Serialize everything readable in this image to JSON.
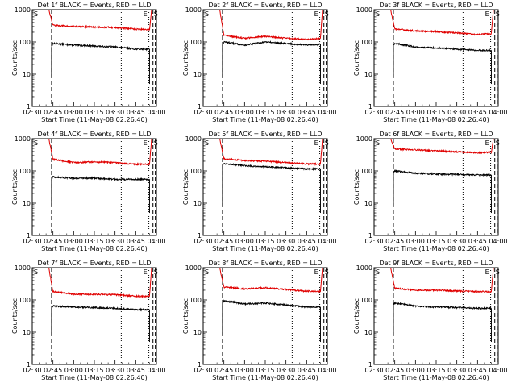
{
  "common": {
    "xlabel": "Start Time (11-May-08 02:26:40)",
    "ylabel": "Counts/sec",
    "x_ticks": [
      "02:30",
      "02:45",
      "03:00",
      "03:15",
      "03:30",
      "03:45",
      "04:00"
    ],
    "y_ticks": [
      "1",
      "10",
      "100",
      "1000"
    ],
    "markers": {
      "start": "S",
      "end": "E"
    },
    "colors": {
      "events": "#000000",
      "lld": "#e00000"
    }
  },
  "chart_data": [
    {
      "type": "line",
      "title": "Det 1f BLACK = Events, RED = LLD",
      "xlabel": "Start Time (11-May-08 02:26:40)",
      "ylabel": "Counts/sec",
      "ylim": [
        1,
        1000
      ],
      "yscale": "log",
      "x_minutes": [
        0,
        90
      ],
      "x_ticks": [
        "02:30",
        "02:45",
        "03:00",
        "03:15",
        "03:30",
        "03:45",
        "04:00"
      ],
      "vlines": {
        "dashed": [
          14,
          87.5,
          89.2
        ],
        "dotted": [
          64.5,
          84.5
        ]
      },
      "series": [
        {
          "key": "black",
          "x": [
            14,
            15,
            30,
            45,
            60,
            75,
            85
          ],
          "y": [
            70,
            90,
            80,
            75,
            70,
            60,
            60
          ]
        },
        {
          "key": "red",
          "x": [
            12,
            15,
            30,
            45,
            60,
            75,
            85,
            86.5
          ],
          "y": [
            1000,
            330,
            300,
            290,
            280,
            250,
            240,
            1000
          ]
        }
      ]
    },
    {
      "type": "line",
      "title": "Det 2f BLACK = Events, RED = LLD",
      "xlabel": "Start Time (11-May-08 02:26:40)",
      "ylabel": "Counts/sec",
      "ylim": [
        1,
        1000
      ],
      "yscale": "log",
      "x_minutes": [
        0,
        90
      ],
      "x_ticks": [
        "02:30",
        "02:45",
        "03:00",
        "03:15",
        "03:30",
        "03:45",
        "04:00"
      ],
      "vlines": {
        "dashed": [
          14,
          87.5,
          89.2
        ],
        "dotted": [
          64.5,
          84.5
        ]
      },
      "series": [
        {
          "key": "black",
          "x": [
            14,
            15,
            30,
            45,
            60,
            75,
            85
          ],
          "y": [
            80,
            100,
            80,
            100,
            90,
            80,
            85
          ]
        },
        {
          "key": "red",
          "x": [
            12,
            15,
            30,
            45,
            60,
            75,
            85,
            86.5
          ],
          "y": [
            1000,
            160,
            130,
            150,
            130,
            120,
            130,
            1000
          ]
        }
      ]
    },
    {
      "type": "line",
      "title": "Det 3f BLACK = Events, RED = LLD",
      "xlabel": "Start Time (11-May-08 02:26:40)",
      "ylabel": "Counts/sec",
      "ylim": [
        1,
        1000
      ],
      "yscale": "log",
      "x_minutes": [
        0,
        90
      ],
      "x_ticks": [
        "02:30",
        "02:45",
        "03:00",
        "03:15",
        "03:30",
        "03:45",
        "04:00"
      ],
      "vlines": {
        "dashed": [
          14,
          87.5,
          89.2
        ],
        "dotted": [
          64.5,
          84.5
        ]
      },
      "series": [
        {
          "key": "black",
          "x": [
            14,
            15,
            30,
            45,
            60,
            75,
            85
          ],
          "y": [
            80,
            90,
            70,
            65,
            60,
            55,
            55
          ]
        },
        {
          "key": "red",
          "x": [
            12,
            15,
            30,
            45,
            60,
            75,
            85,
            86.5
          ],
          "y": [
            1000,
            250,
            220,
            210,
            190,
            170,
            180,
            1000
          ]
        }
      ]
    },
    {
      "type": "line",
      "title": "Det 4f BLACK = Events, RED = LLD",
      "xlabel": "Start Time (11-May-08 02:26:40)",
      "ylabel": "Counts/sec",
      "ylim": [
        1,
        1000
      ],
      "yscale": "log",
      "x_minutes": [
        0,
        90
      ],
      "x_ticks": [
        "02:30",
        "02:45",
        "03:00",
        "03:15",
        "03:30",
        "03:45",
        "04:00"
      ],
      "vlines": {
        "dashed": [
          14,
          87.5,
          89.2
        ],
        "dotted": [
          64.5,
          84.5
        ]
      },
      "series": [
        {
          "key": "black",
          "x": [
            14,
            15,
            30,
            45,
            60,
            75,
            85
          ],
          "y": [
            55,
            65,
            60,
            60,
            55,
            55,
            55
          ]
        },
        {
          "key": "red",
          "x": [
            12,
            15,
            30,
            45,
            60,
            75,
            85,
            86.5
          ],
          "y": [
            1000,
            230,
            180,
            190,
            180,
            160,
            160,
            1000
          ]
        }
      ]
    },
    {
      "type": "line",
      "title": "Det 5f BLACK = Events, RED = LLD",
      "xlabel": "Start Time (11-May-08 02:26:40)",
      "ylabel": "Counts/sec",
      "ylim": [
        1,
        1000
      ],
      "yscale": "log",
      "x_minutes": [
        0,
        90
      ],
      "x_ticks": [
        "02:30",
        "02:45",
        "03:00",
        "03:15",
        "03:30",
        "03:45",
        "04:00"
      ],
      "vlines": {
        "dashed": [
          14,
          87.5,
          89.2
        ],
        "dotted": [
          64.5,
          84.5
        ]
      },
      "series": [
        {
          "key": "black",
          "x": [
            14,
            15,
            30,
            45,
            60,
            75,
            85
          ],
          "y": [
            150,
            170,
            145,
            135,
            125,
            115,
            115
          ]
        },
        {
          "key": "red",
          "x": [
            12,
            15,
            30,
            45,
            60,
            75,
            85,
            86.5
          ],
          "y": [
            1000,
            240,
            210,
            200,
            180,
            165,
            165,
            1000
          ]
        }
      ]
    },
    {
      "type": "line",
      "title": "Det 6f BLACK = Events, RED = LLD",
      "xlabel": "Start Time (11-May-08 02:26:40)",
      "ylabel": "Counts/sec",
      "ylim": [
        1,
        1000
      ],
      "yscale": "log",
      "x_minutes": [
        0,
        90
      ],
      "x_ticks": [
        "02:30",
        "02:45",
        "03:00",
        "03:15",
        "03:30",
        "03:45",
        "04:00"
      ],
      "vlines": {
        "dashed": [
          14,
          87.5,
          89.2
        ],
        "dotted": [
          64.5,
          84.5
        ]
      },
      "series": [
        {
          "key": "black",
          "x": [
            14,
            15,
            30,
            45,
            60,
            75,
            85
          ],
          "y": [
            90,
            100,
            85,
            80,
            78,
            75,
            75
          ]
        },
        {
          "key": "red",
          "x": [
            12,
            15,
            30,
            45,
            60,
            75,
            85,
            86.5
          ],
          "y": [
            1000,
            480,
            450,
            420,
            390,
            370,
            380,
            1000
          ]
        }
      ]
    },
    {
      "type": "line",
      "title": "Det 7f BLACK = Events, RED = LLD",
      "xlabel": "Start Time (11-May-08 02:26:40)",
      "ylabel": "Counts/sec",
      "ylim": [
        1,
        1000
      ],
      "yscale": "log",
      "x_minutes": [
        0,
        90
      ],
      "x_ticks": [
        "02:30",
        "02:45",
        "03:00",
        "03:15",
        "03:30",
        "03:45",
        "04:00"
      ],
      "vlines": {
        "dashed": [
          14,
          87.5,
          89.2
        ],
        "dotted": [
          64.5,
          84.5
        ]
      },
      "series": [
        {
          "key": "black",
          "x": [
            14,
            15,
            30,
            45,
            60,
            75,
            85
          ],
          "y": [
            55,
            65,
            60,
            58,
            55,
            50,
            50
          ]
        },
        {
          "key": "red",
          "x": [
            12,
            15,
            30,
            45,
            60,
            75,
            85,
            86.5
          ],
          "y": [
            1000,
            180,
            150,
            150,
            145,
            130,
            130,
            1000
          ]
        }
      ]
    },
    {
      "type": "line",
      "title": "Det 8f BLACK = Events, RED = LLD",
      "xlabel": "Start Time (11-May-08 02:26:40)",
      "ylabel": "Counts/sec",
      "ylim": [
        1,
        1000
      ],
      "yscale": "log",
      "x_minutes": [
        0,
        90
      ],
      "x_ticks": [
        "02:30",
        "02:45",
        "03:00",
        "03:15",
        "03:30",
        "03:45",
        "04:00"
      ],
      "vlines": {
        "dashed": [
          14,
          87.5,
          89.2
        ],
        "dotted": [
          64.5,
          84.5
        ]
      },
      "series": [
        {
          "key": "black",
          "x": [
            14,
            15,
            30,
            45,
            60,
            75,
            85
          ],
          "y": [
            75,
            95,
            75,
            80,
            70,
            60,
            60
          ]
        },
        {
          "key": "red",
          "x": [
            12,
            15,
            30,
            45,
            60,
            75,
            85,
            86.5
          ],
          "y": [
            1000,
            250,
            220,
            240,
            210,
            185,
            185,
            1000
          ]
        }
      ]
    },
    {
      "type": "line",
      "title": "Det 9f BLACK = Events, RED = LLD",
      "xlabel": "Start Time (11-May-08 02:26:40)",
      "ylabel": "Counts/sec",
      "ylim": [
        1,
        1000
      ],
      "yscale": "log",
      "x_minutes": [
        0,
        90
      ],
      "x_ticks": [
        "02:30",
        "02:45",
        "03:00",
        "03:15",
        "03:30",
        "03:45",
        "04:00"
      ],
      "vlines": {
        "dashed": [
          14,
          87.5,
          89.2
        ],
        "dotted": [
          64.5,
          84.5
        ]
      },
      "series": [
        {
          "key": "black",
          "x": [
            14,
            15,
            30,
            45,
            60,
            75,
            85
          ],
          "y": [
            70,
            80,
            65,
            60,
            58,
            55,
            55
          ]
        },
        {
          "key": "red",
          "x": [
            12,
            15,
            30,
            45,
            60,
            75,
            85,
            86.5
          ],
          "y": [
            1000,
            230,
            200,
            200,
            190,
            180,
            180,
            1000
          ]
        }
      ]
    }
  ]
}
